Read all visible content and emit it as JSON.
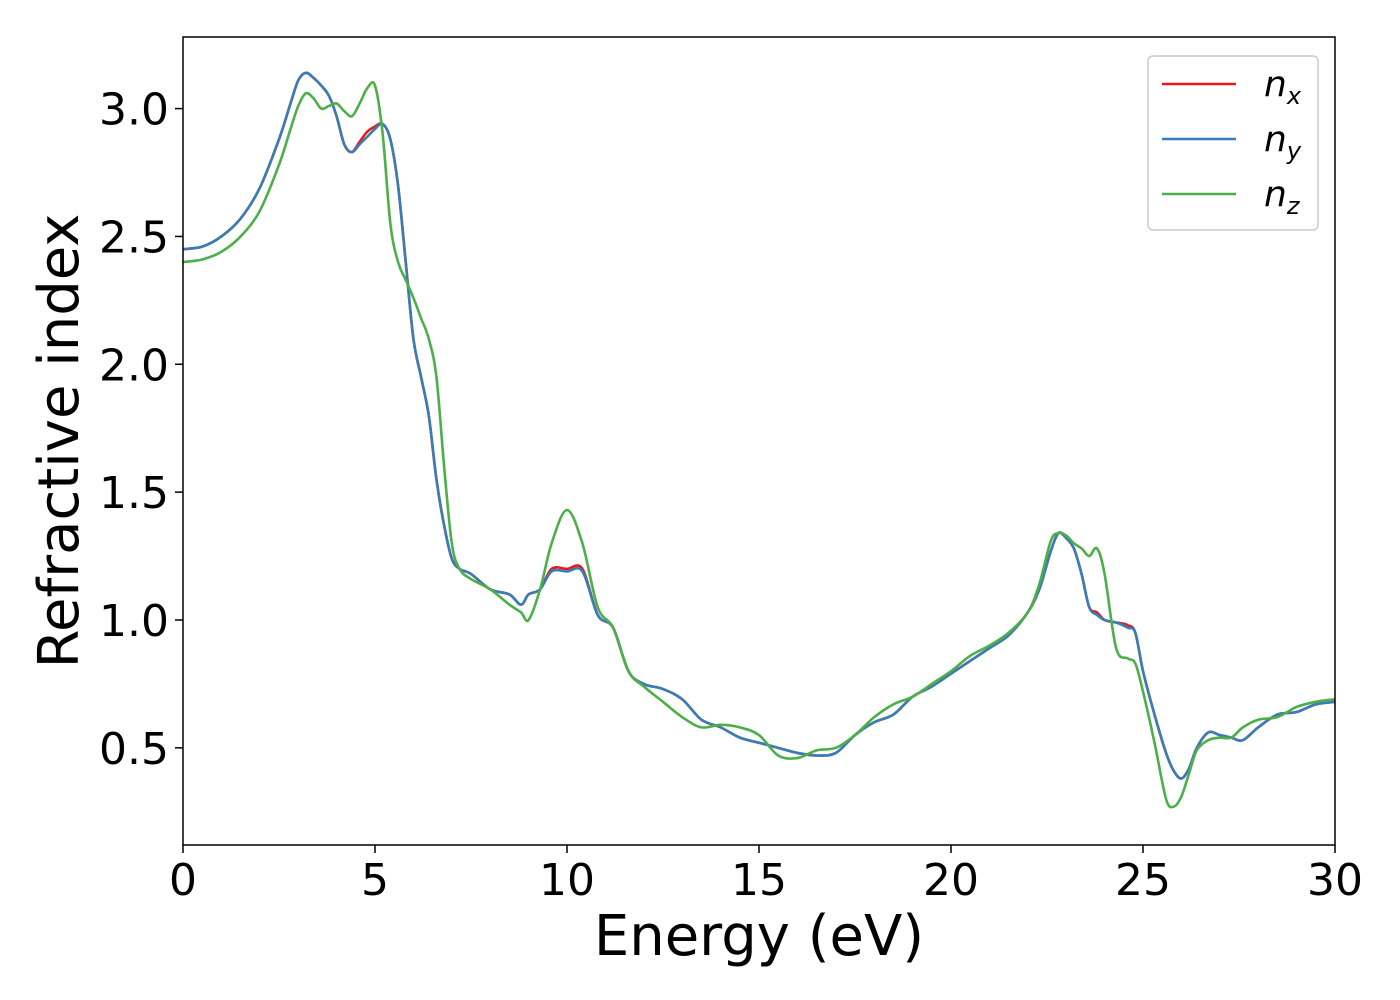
{
  "chart_data": {
    "type": "line",
    "title": "",
    "xlabel": "Energy (eV)",
    "ylabel": "Refractive index",
    "xlim": [
      0,
      30
    ],
    "ylim": [
      0.12,
      3.28
    ],
    "x_ticks": [
      0,
      5,
      10,
      15,
      20,
      25,
      30
    ],
    "y_ticks": [
      0.5,
      1.0,
      1.5,
      2.0,
      2.5,
      3.0
    ],
    "x_tick_labels": [
      "0",
      "5",
      "10",
      "15",
      "20",
      "25",
      "30"
    ],
    "y_tick_labels": [
      "0.5",
      "1.0",
      "1.5",
      "2.0",
      "2.5",
      "3.0"
    ],
    "grid": false,
    "legend_position": "top-right",
    "legend": [
      {
        "base": "n",
        "sub": "x",
        "color": "#e41a1c"
      },
      {
        "base": "n",
        "sub": "y",
        "color": "#377eb8"
      },
      {
        "base": "n",
        "sub": "z",
        "color": "#4daf4a"
      }
    ],
    "series": [
      {
        "key": "nx",
        "color": "#e41a1c",
        "x": [
          0,
          0.5,
          1,
          1.5,
          2,
          2.5,
          2.8,
          3.0,
          3.2,
          3.4,
          3.6,
          3.8,
          4.0,
          4.2,
          4.4,
          4.6,
          4.8,
          5.0,
          5.2,
          5.4,
          5.6,
          5.8,
          6.0,
          6.2,
          6.4,
          6.6,
          6.8,
          7.0,
          7.2,
          7.5,
          8.0,
          8.5,
          8.8,
          9.0,
          9.3,
          9.6,
          10.0,
          10.4,
          10.8,
          11.2,
          11.6,
          12.0,
          12.5,
          13.0,
          13.5,
          14.0,
          14.5,
          15.0,
          15.5,
          16.0,
          16.5,
          17.0,
          17.5,
          18.0,
          18.5,
          19.0,
          19.5,
          20.0,
          20.5,
          21.0,
          21.5,
          22.0,
          22.3,
          22.6,
          22.8,
          23.0,
          23.2,
          23.4,
          23.6,
          23.8,
          24.0,
          24.3,
          24.6,
          24.8,
          25.0,
          25.3,
          25.6,
          25.8,
          26.0,
          26.2,
          26.4,
          26.7,
          27.0,
          27.3,
          27.6,
          28.0,
          28.5,
          29.0,
          29.5,
          30.0
        ],
        "y": [
          2.45,
          2.46,
          2.5,
          2.57,
          2.69,
          2.88,
          3.02,
          3.11,
          3.14,
          3.12,
          3.09,
          3.05,
          2.97,
          2.86,
          2.83,
          2.87,
          2.91,
          2.93,
          2.94,
          2.88,
          2.7,
          2.4,
          2.1,
          1.95,
          1.8,
          1.55,
          1.37,
          1.24,
          1.2,
          1.18,
          1.12,
          1.1,
          1.06,
          1.1,
          1.12,
          1.2,
          1.2,
          1.2,
          1.02,
          0.97,
          0.8,
          0.75,
          0.73,
          0.69,
          0.61,
          0.58,
          0.54,
          0.52,
          0.5,
          0.48,
          0.47,
          0.48,
          0.55,
          0.6,
          0.63,
          0.7,
          0.74,
          0.79,
          0.84,
          0.89,
          0.94,
          1.03,
          1.12,
          1.27,
          1.34,
          1.32,
          1.28,
          1.18,
          1.05,
          1.03,
          1.0,
          0.99,
          0.98,
          0.95,
          0.8,
          0.63,
          0.48,
          0.41,
          0.38,
          0.42,
          0.5,
          0.56,
          0.55,
          0.54,
          0.53,
          0.58,
          0.63,
          0.64,
          0.67,
          0.68
        ]
      },
      {
        "key": "ny",
        "color": "#377eb8",
        "x": [
          0,
          0.5,
          1,
          1.5,
          2,
          2.5,
          2.8,
          3.0,
          3.2,
          3.4,
          3.6,
          3.8,
          4.0,
          4.2,
          4.4,
          4.6,
          4.8,
          5.0,
          5.2,
          5.4,
          5.6,
          5.8,
          6.0,
          6.2,
          6.4,
          6.6,
          6.8,
          7.0,
          7.2,
          7.5,
          8.0,
          8.5,
          8.8,
          9.0,
          9.3,
          9.6,
          10.0,
          10.4,
          10.8,
          11.2,
          11.6,
          12.0,
          12.5,
          13.0,
          13.5,
          14.0,
          14.5,
          15.0,
          15.5,
          16.0,
          16.5,
          17.0,
          17.5,
          18.0,
          18.5,
          19.0,
          19.5,
          20.0,
          20.5,
          21.0,
          21.5,
          22.0,
          22.3,
          22.6,
          22.8,
          23.0,
          23.2,
          23.4,
          23.6,
          23.8,
          24.0,
          24.3,
          24.6,
          24.8,
          25.0,
          25.3,
          25.6,
          25.8,
          26.0,
          26.2,
          26.4,
          26.7,
          27.0,
          27.3,
          27.6,
          28.0,
          28.5,
          29.0,
          29.5,
          30.0
        ],
        "y": [
          2.45,
          2.46,
          2.5,
          2.57,
          2.69,
          2.88,
          3.02,
          3.11,
          3.14,
          3.12,
          3.09,
          3.05,
          2.97,
          2.86,
          2.83,
          2.86,
          2.89,
          2.92,
          2.94,
          2.88,
          2.7,
          2.4,
          2.1,
          1.95,
          1.8,
          1.55,
          1.37,
          1.24,
          1.2,
          1.18,
          1.12,
          1.1,
          1.06,
          1.1,
          1.12,
          1.19,
          1.19,
          1.19,
          1.02,
          0.97,
          0.8,
          0.75,
          0.73,
          0.69,
          0.61,
          0.58,
          0.54,
          0.52,
          0.5,
          0.48,
          0.47,
          0.48,
          0.55,
          0.6,
          0.63,
          0.7,
          0.74,
          0.79,
          0.84,
          0.89,
          0.94,
          1.03,
          1.12,
          1.27,
          1.34,
          1.32,
          1.28,
          1.18,
          1.05,
          1.02,
          1.0,
          0.99,
          0.97,
          0.95,
          0.8,
          0.63,
          0.48,
          0.41,
          0.38,
          0.42,
          0.5,
          0.56,
          0.55,
          0.54,
          0.53,
          0.58,
          0.63,
          0.64,
          0.67,
          0.68
        ]
      },
      {
        "key": "nz",
        "color": "#4daf4a",
        "x": [
          0,
          0.5,
          1,
          1.5,
          2,
          2.5,
          2.8,
          3.0,
          3.2,
          3.4,
          3.6,
          3.8,
          4.0,
          4.2,
          4.4,
          4.6,
          4.8,
          5.0,
          5.2,
          5.4,
          5.6,
          5.8,
          6.0,
          6.2,
          6.4,
          6.6,
          6.8,
          7.0,
          7.2,
          7.5,
          8.0,
          8.5,
          8.8,
          9.0,
          9.3,
          9.6,
          10.0,
          10.4,
          10.8,
          11.2,
          11.6,
          12.0,
          12.5,
          13.0,
          13.5,
          14.0,
          14.5,
          15.0,
          15.5,
          16.0,
          16.5,
          17.0,
          17.5,
          18.0,
          18.5,
          19.0,
          19.5,
          20.0,
          20.5,
          21.0,
          21.5,
          22.0,
          22.3,
          22.6,
          22.8,
          23.0,
          23.2,
          23.4,
          23.6,
          23.8,
          24.0,
          24.3,
          24.6,
          24.8,
          25.0,
          25.3,
          25.6,
          25.8,
          26.0,
          26.2,
          26.4,
          26.7,
          27.0,
          27.3,
          27.6,
          28.0,
          28.5,
          29.0,
          29.5,
          30.0
        ],
        "y": [
          2.4,
          2.41,
          2.44,
          2.5,
          2.6,
          2.78,
          2.92,
          3.01,
          3.06,
          3.04,
          3.0,
          3.01,
          3.02,
          2.99,
          2.97,
          3.02,
          3.08,
          3.09,
          2.9,
          2.55,
          2.4,
          2.33,
          2.26,
          2.18,
          2.1,
          1.95,
          1.6,
          1.3,
          1.2,
          1.16,
          1.12,
          1.06,
          1.03,
          1.0,
          1.12,
          1.3,
          1.43,
          1.3,
          1.05,
          0.97,
          0.8,
          0.74,
          0.68,
          0.62,
          0.58,
          0.59,
          0.58,
          0.55,
          0.47,
          0.46,
          0.49,
          0.5,
          0.55,
          0.62,
          0.67,
          0.7,
          0.75,
          0.8,
          0.86,
          0.9,
          0.95,
          1.03,
          1.14,
          1.31,
          1.34,
          1.33,
          1.3,
          1.28,
          1.25,
          1.28,
          1.18,
          0.89,
          0.85,
          0.83,
          0.72,
          0.52,
          0.3,
          0.27,
          0.31,
          0.4,
          0.49,
          0.53,
          0.54,
          0.54,
          0.58,
          0.61,
          0.62,
          0.66,
          0.68,
          0.69
        ]
      }
    ]
  }
}
